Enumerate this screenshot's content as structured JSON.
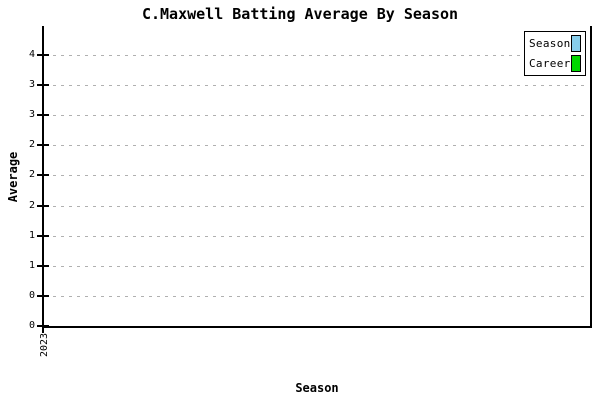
{
  "chart_data": {
    "type": "bar",
    "title": "C.Maxwell Batting Average By Season",
    "xlabel": "Season",
    "ylabel": "Average",
    "categories": [
      "2023"
    ],
    "series": [
      {
        "name": "Season",
        "color": "#87CEEB",
        "values": []
      },
      {
        "name": "Career",
        "color": "#00D700",
        "values": []
      }
    ],
    "y_axis": {
      "tick_labels_top_to_bottom": [
        "4",
        "3",
        "3",
        "2",
        "2",
        "2",
        "1",
        "1",
        "0",
        "0"
      ],
      "tick_values_top_to_bottom": [
        3.6,
        3.2,
        2.8,
        2.4,
        2.0,
        1.6,
        1.2,
        0.8,
        0.4,
        0.0
      ],
      "ylim": [
        0,
        4.0
      ]
    },
    "legend": {
      "position": "top-right",
      "entries": [
        {
          "label": "Season",
          "color": "#87CEEB"
        },
        {
          "label": "Career",
          "color": "#00D700"
        }
      ]
    },
    "grid": {
      "style": "horizontal-dashed",
      "color": "#b0b0b0"
    },
    "note": "no data bars are rendered in the plot area",
    "colors": {
      "background": "#ffffff",
      "axis": "#000000",
      "text": "#000000"
    }
  }
}
